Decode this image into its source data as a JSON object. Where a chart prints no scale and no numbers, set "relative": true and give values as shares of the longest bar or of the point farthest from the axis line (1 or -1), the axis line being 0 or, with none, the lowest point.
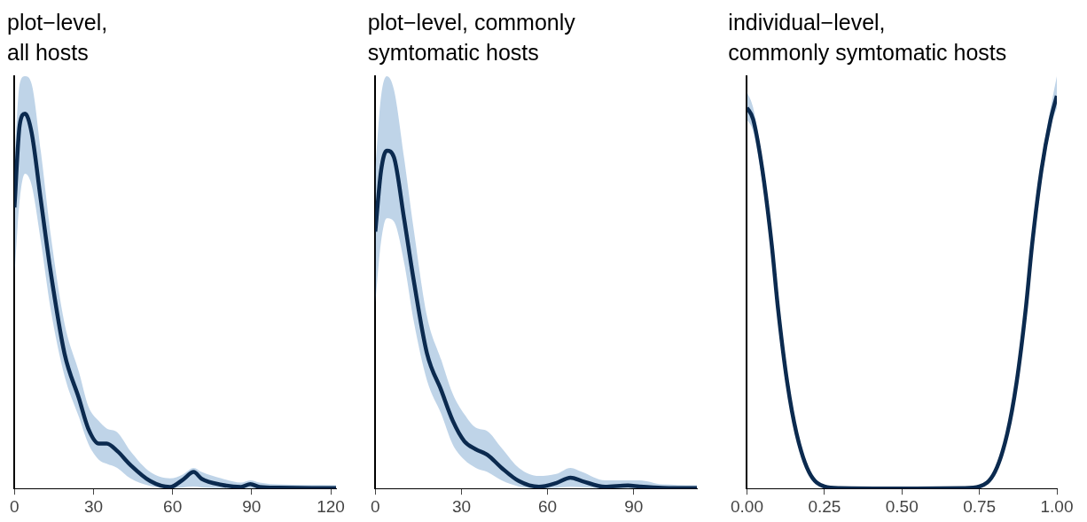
{
  "chart_data": [
    {
      "type": "line",
      "title": "plot−level,\nall hosts",
      "relative": true,
      "xlim": [
        0,
        122
      ],
      "xticks": [
        0,
        30,
        60,
        90,
        120
      ],
      "grid": false,
      "legend": false,
      "marker": "none",
      "line_style": "solid",
      "series": [
        {
          "color": "#0b2a4f",
          "x": [
            0,
            2,
            4,
            6.5,
            10,
            13.7,
            19,
            24.5,
            28,
            32,
            35,
            39,
            44,
            51.5,
            59,
            64,
            68,
            71,
            78.5,
            86,
            89.5,
            93,
            100,
            122
          ],
          "values": [
            0.75,
            0.97,
            1,
            0.95,
            0.77,
            0.58,
            0.36,
            0.24,
            0.16,
            0.12,
            0.12,
            0.1,
            0.063,
            0.02,
            0.004,
            0.024,
            0.044,
            0.026,
            0.01,
            0.004,
            0.012,
            0.004,
            0.002,
            0.001
          ],
          "lower": [
            0.57,
            0.77,
            0.84,
            0.81,
            0.66,
            0.48,
            0.3,
            0.19,
            0.12,
            0.077,
            0.066,
            0.055,
            0.027,
            0.007,
            0.001,
            0.003,
            0.005,
            0.003,
            0.001,
            0.001,
            0.001,
            0.001,
            0,
            0
          ],
          "upper": [
            0.88,
            1.08,
            1.1,
            1.08,
            0.9,
            0.68,
            0.44,
            0.31,
            0.22,
            0.18,
            0.16,
            0.15,
            0.1,
            0.044,
            0.027,
            0.038,
            0.055,
            0.044,
            0.027,
            0.016,
            0.022,
            0.016,
            0.011,
            0.009
          ]
        }
      ]
    },
    {
      "type": "line",
      "title": "plot−level, commonly\nsymtomatic hosts",
      "relative": true,
      "xlim": [
        0,
        112
      ],
      "xticks": [
        0,
        30,
        60,
        90
      ],
      "grid": false,
      "legend": false,
      "marker": "none",
      "line_style": "solid",
      "series": [
        {
          "color": "#0b2a4f",
          "x": [
            0,
            2,
            4,
            6.5,
            10,
            13.5,
            18,
            23,
            27,
            31,
            35,
            39,
            44,
            50,
            57,
            63,
            68,
            72,
            80,
            88,
            92,
            100,
            112
          ],
          "values": [
            0.76,
            0.94,
            1,
            0.98,
            0.8,
            0.61,
            0.4,
            0.29,
            0.2,
            0.14,
            0.116,
            0.1,
            0.061,
            0.022,
            0.005,
            0.016,
            0.032,
            0.022,
            0.005,
            0.009,
            0.006,
            0.002,
            0.001
          ],
          "lower": [
            0.55,
            0.73,
            0.8,
            0.79,
            0.67,
            0.49,
            0.32,
            0.22,
            0.13,
            0.085,
            0.061,
            0.049,
            0.024,
            0.006,
            0.001,
            0.002,
            0.005,
            0.004,
            0.001,
            0.001,
            0.001,
            0,
            0
          ],
          "upper": [
            0.95,
            1.16,
            1.22,
            1.18,
            0.98,
            0.76,
            0.51,
            0.38,
            0.28,
            0.22,
            0.18,
            0.17,
            0.12,
            0.061,
            0.037,
            0.043,
            0.061,
            0.049,
            0.024,
            0.024,
            0.024,
            0.012,
            0.01
          ]
        }
      ]
    },
    {
      "type": "line",
      "title": "individual−level,\ncommonly symtomatic hosts",
      "relative": true,
      "xlim": [
        0,
        1
      ],
      "xticks": [
        {
          "value": 0,
          "label": "0.00"
        },
        {
          "value": 0.25,
          "label": "0.25"
        },
        {
          "value": 0.5,
          "label": "0.50"
        },
        {
          "value": 0.75,
          "label": "0.75"
        },
        {
          "value": 1,
          "label": "1.00"
        }
      ],
      "grid": false,
      "legend": false,
      "marker": "none",
      "line_style": "solid",
      "series": [
        {
          "color": "#0b2a4f",
          "x": [
            0,
            0.02,
            0.05,
            0.08,
            0.1,
            0.13,
            0.16,
            0.2,
            0.25,
            0.3,
            0.5,
            0.7,
            0.75,
            0.8,
            0.84,
            0.87,
            0.9,
            0.92,
            0.95,
            0.98,
            1
          ],
          "values": [
            0.97,
            0.94,
            0.81,
            0.62,
            0.46,
            0.27,
            0.14,
            0.042,
            0.005,
            0.001,
            0,
            0.001,
            0.005,
            0.042,
            0.14,
            0.27,
            0.46,
            0.62,
            0.81,
            0.94,
            1
          ],
          "lower": [
            0.94,
            0.91,
            0.78,
            0.6,
            0.44,
            0.26,
            0.13,
            0.037,
            0.004,
            0,
            0,
            0,
            0.004,
            0.037,
            0.13,
            0.26,
            0.44,
            0.6,
            0.78,
            0.92,
            0.97
          ],
          "upper": [
            1.01,
            0.97,
            0.83,
            0.64,
            0.48,
            0.28,
            0.15,
            0.047,
            0.006,
            0.002,
            0.001,
            0.002,
            0.006,
            0.047,
            0.15,
            0.28,
            0.48,
            0.64,
            0.83,
            0.97,
            1.05
          ]
        }
      ]
    }
  ]
}
